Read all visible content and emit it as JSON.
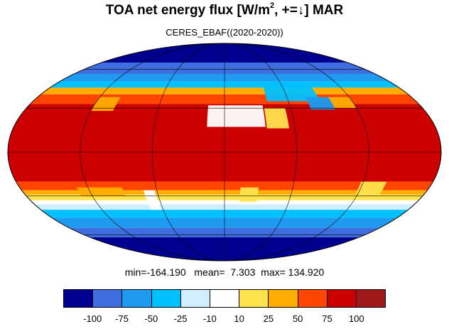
{
  "header": {
    "title_text": "TOA net energy flux  [W/m",
    "title_sup": "2",
    "title_rest": ", +=↓] MAR",
    "subtitle": "CERES_EBAF((2020-2020))"
  },
  "stats": {
    "text": "min=-164.190   mean=  7.303  max= 134.920"
  },
  "colorbar": {
    "colors": [
      "#00008f",
      "#3f6ee0",
      "#1e9bf0",
      "#00c1ff",
      "#cfeeff",
      "#ffffff",
      "#ffe34d",
      "#ffad00",
      "#ff4500",
      "#cc0000",
      "#9e1a1a"
    ],
    "labels": [
      "-100",
      "-75",
      "-50",
      "-25",
      "-10",
      "10",
      "25",
      "50",
      "75",
      "100"
    ]
  },
  "map": {
    "projection": "Mollweide",
    "graticule_lat_step": 30,
    "graticule_lon_step": 60,
    "zonal_bands": [
      {
        "lat_from": 90,
        "lat_to": 66,
        "color": "#00008f"
      },
      {
        "lat_from": 66,
        "lat_to": 56,
        "color": "#3f6ee0"
      },
      {
        "lat_from": 56,
        "lat_to": 50,
        "color": "#1e9bf0"
      },
      {
        "lat_from": 50,
        "lat_to": 45,
        "color": "#00c1ff"
      },
      {
        "lat_from": 45,
        "lat_to": 40,
        "color": "#ffad00"
      },
      {
        "lat_from": 40,
        "lat_to": 33,
        "color": "#ff4500"
      },
      {
        "lat_from": 33,
        "lat_to": -20,
        "color": "#cc0000"
      },
      {
        "lat_from": -20,
        "lat_to": -26,
        "color": "#ff4500"
      },
      {
        "lat_from": -26,
        "lat_to": -29,
        "color": "#ffad00"
      },
      {
        "lat_from": -29,
        "lat_to": -33,
        "color": "#ffe34d"
      },
      {
        "lat_from": -33,
        "lat_to": -36,
        "color": "#ffffff"
      },
      {
        "lat_from": -36,
        "lat_to": -40,
        "color": "#cfeeff"
      },
      {
        "lat_from": -40,
        "lat_to": -46,
        "color": "#00c1ff"
      },
      {
        "lat_from": -46,
        "lat_to": -54,
        "color": "#1e9bf0"
      },
      {
        "lat_from": -54,
        "lat_to": -62,
        "color": "#3f6ee0"
      },
      {
        "lat_from": -62,
        "lat_to": -90,
        "color": "#00008f"
      }
    ],
    "regions": [
      {
        "name": "sahara",
        "color": "#ffffff",
        "lon": [
          -15,
          35
        ],
        "lat": [
          17,
          32
        ]
      },
      {
        "name": "arabia",
        "color": "#ffe34d",
        "lon": [
          36,
          55
        ],
        "lat": [
          16,
          30
        ]
      },
      {
        "name": "central-asia",
        "color": "#00c1ff",
        "lon": [
          40,
          90
        ],
        "lat": [
          35,
          48
        ]
      },
      {
        "name": "tibet",
        "color": "#1e9bf0",
        "lon": [
          78,
          100
        ],
        "lat": [
          29,
          38
        ]
      },
      {
        "name": "north-america-west",
        "color": "#ffad00",
        "lon": [
          -120,
          -100
        ],
        "lat": [
          28,
          38
        ]
      },
      {
        "name": "australia-desert",
        "color": "#ffe34d",
        "lon": [
          118,
          140
        ],
        "lat": [
          -30,
          -20
        ]
      },
      {
        "name": "south-america-desert",
        "color": "#ffffff",
        "lon": [
          -72,
          -62
        ],
        "lat": [
          -40,
          -26
        ]
      },
      {
        "name": "southern-africa",
        "color": "#ffe34d",
        "lon": [
          14,
          30
        ],
        "lat": [
          -34,
          -24
        ]
      },
      {
        "name": "himalaya-north",
        "color": "#ffad00",
        "lon": [
          100,
          120
        ],
        "lat": [
          30,
          38
        ]
      },
      {
        "name": "east-pacific-south",
        "color": "#ffad00",
        "lon": [
          -130,
          -90
        ],
        "lat": [
          -30,
          -24
        ]
      }
    ]
  }
}
